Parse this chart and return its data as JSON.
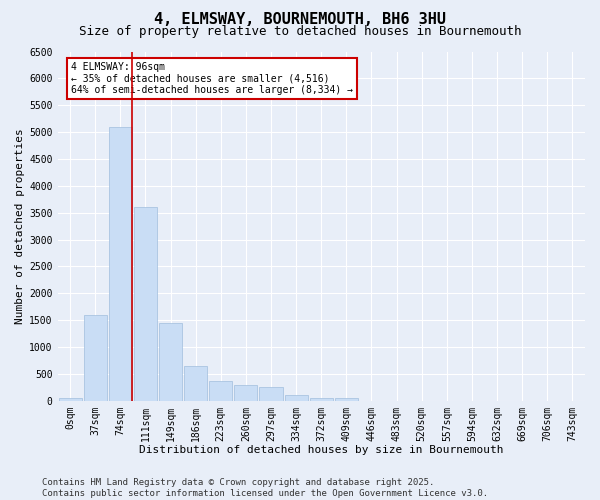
{
  "title": "4, ELMSWAY, BOURNEMOUTH, BH6 3HU",
  "subtitle": "Size of property relative to detached houses in Bournemouth",
  "xlabel": "Distribution of detached houses by size in Bournemouth",
  "ylabel": "Number of detached properties",
  "footer_line1": "Contains HM Land Registry data © Crown copyright and database right 2025.",
  "footer_line2": "Contains public sector information licensed under the Open Government Licence v3.0.",
  "categories": [
    "0sqm",
    "37sqm",
    "74sqm",
    "111sqm",
    "149sqm",
    "186sqm",
    "223sqm",
    "260sqm",
    "297sqm",
    "334sqm",
    "372sqm",
    "409sqm",
    "446sqm",
    "483sqm",
    "520sqm",
    "557sqm",
    "594sqm",
    "632sqm",
    "669sqm",
    "706sqm",
    "743sqm"
  ],
  "bar_values": [
    55,
    1600,
    5100,
    3600,
    1450,
    650,
    370,
    300,
    250,
    100,
    55,
    55,
    0,
    0,
    0,
    0,
    0,
    0,
    0,
    0,
    0
  ],
  "bar_color": "#c9ddf5",
  "bar_edge_color": "#a0bedd",
  "background_color": "#e8eef8",
  "grid_color": "#ffffff",
  "ylim": [
    0,
    6500
  ],
  "yticks": [
    0,
    500,
    1000,
    1500,
    2000,
    2500,
    3000,
    3500,
    4000,
    4500,
    5000,
    5500,
    6000,
    6500
  ],
  "vline_x_data": 2.48,
  "vline_color": "#cc0000",
  "annotation_text": "4 ELMSWAY: 96sqm\n← 35% of detached houses are smaller (4,516)\n64% of semi-detached houses are larger (8,334) →",
  "annotation_box_color": "#ffffff",
  "annotation_border_color": "#cc0000",
  "title_fontsize": 11,
  "subtitle_fontsize": 9,
  "label_fontsize": 8,
  "tick_fontsize": 7,
  "annot_fontsize": 7,
  "footer_fontsize": 6.5
}
